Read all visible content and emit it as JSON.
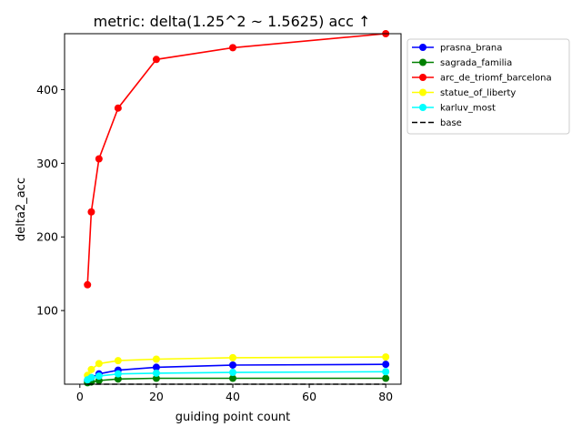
{
  "chart_data": {
    "type": "line",
    "title": "metric: delta(1.25^2 ~ 1.5625) acc ↑",
    "xlabel": "guiding point count",
    "ylabel": "delta2_acc",
    "xlim": [
      -4,
      84
    ],
    "ylim": [
      0,
      476
    ],
    "xticks": [
      0,
      20,
      40,
      60,
      80
    ],
    "yticks": [
      100,
      200,
      300,
      400
    ],
    "grid": false,
    "legend_placement": "outside-right",
    "series": [
      {
        "name": "prasna_brana",
        "color": "#0000ff",
        "marker": "circle",
        "dashed": false,
        "x": [
          2,
          3,
          5,
          10,
          20,
          40,
          80
        ],
        "y": [
          5,
          9,
          14,
          19,
          23,
          26,
          27
        ]
      },
      {
        "name": "sagrada_familia",
        "color": "#008000",
        "marker": "circle",
        "dashed": false,
        "x": [
          2,
          3,
          5,
          10,
          20,
          40,
          80
        ],
        "y": [
          2,
          3,
          5,
          7,
          8,
          8,
          8
        ]
      },
      {
        "name": "arc_de_triomf_barcelona",
        "color": "#ff0000",
        "marker": "circle",
        "dashed": false,
        "x": [
          2,
          3,
          5,
          10,
          20,
          40,
          80
        ],
        "y": [
          135,
          234,
          306,
          375,
          441,
          457,
          476
        ]
      },
      {
        "name": "statue_of_liberty",
        "color": "#ffff00",
        "marker": "circle",
        "dashed": false,
        "x": [
          2,
          3,
          5,
          10,
          20,
          40,
          80
        ],
        "y": [
          12,
          20,
          28,
          32,
          34,
          36,
          37
        ]
      },
      {
        "name": "karluv_most",
        "color": "#00ffff",
        "marker": "circle",
        "dashed": false,
        "x": [
          2,
          3,
          5,
          10,
          20,
          40,
          80
        ],
        "y": [
          6,
          9,
          11,
          14,
          15,
          16,
          17
        ]
      },
      {
        "name": "base",
        "color": "#000000",
        "marker": "none",
        "dashed": true,
        "x": [
          2,
          80
        ],
        "y": [
          0,
          0
        ]
      }
    ]
  }
}
